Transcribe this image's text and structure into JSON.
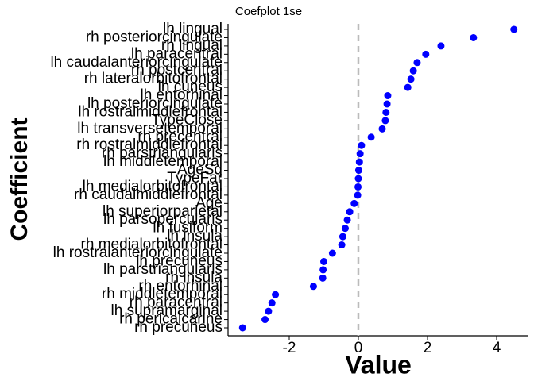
{
  "chart_data": {
    "type": "dot",
    "title": "Coefplot 1se",
    "x_label": "Value",
    "y_label": "Coefficient",
    "categories": [
      "lh lingual",
      "rh posteriorcingulate",
      "rh lingual",
      "lh paracentral",
      "lh caudalanteriorcingulate",
      "rh postcentral",
      "rh lateralorbitofrontal",
      "lh cuneus",
      "lh entorhinal",
      "lh posteriorcingulate",
      "lh rostralmiddlefrontal",
      "TypeClose",
      "lh transversetemporal",
      "rh precentral",
      "rh rostralmiddlefrontal",
      "rh parstriangularis",
      "lh middletemporal",
      "AgeSq",
      "TypeFar",
      "lh medialorbitofrontal",
      "rh caudalmiddlefrontal",
      "Age",
      "lh superiorparietal",
      "lh parsopercularis",
      "lh fusiform",
      "lh insula",
      "rh medialorbitofrontal",
      "lh rostralanteriorcingulate",
      "lh precuneus",
      "lh parstriangularis",
      "rh insula",
      "rh entorhinal",
      "rh middletemporal",
      "rh paracentral",
      "lh supramarginal",
      "rh pericalcarine",
      "rh precuneus"
    ],
    "values": [
      4.5,
      3.33,
      2.39,
      1.95,
      1.7,
      1.59,
      1.52,
      1.43,
      0.85,
      0.83,
      0.8,
      0.78,
      0.69,
      0.37,
      0.09,
      0.05,
      0.03,
      0.01,
      0.0,
      -0.01,
      -0.02,
      -0.12,
      -0.25,
      -0.32,
      -0.38,
      -0.45,
      -0.48,
      -0.75,
      -1.0,
      -1.02,
      -1.03,
      -1.3,
      -2.4,
      -2.5,
      -2.6,
      -2.7,
      -3.35
    ],
    "color": "#0000ff",
    "xlim": [
      -3.77,
      4.92
    ],
    "xticks": [
      -2,
      0,
      2,
      4
    ],
    "reference_line": 0
  }
}
